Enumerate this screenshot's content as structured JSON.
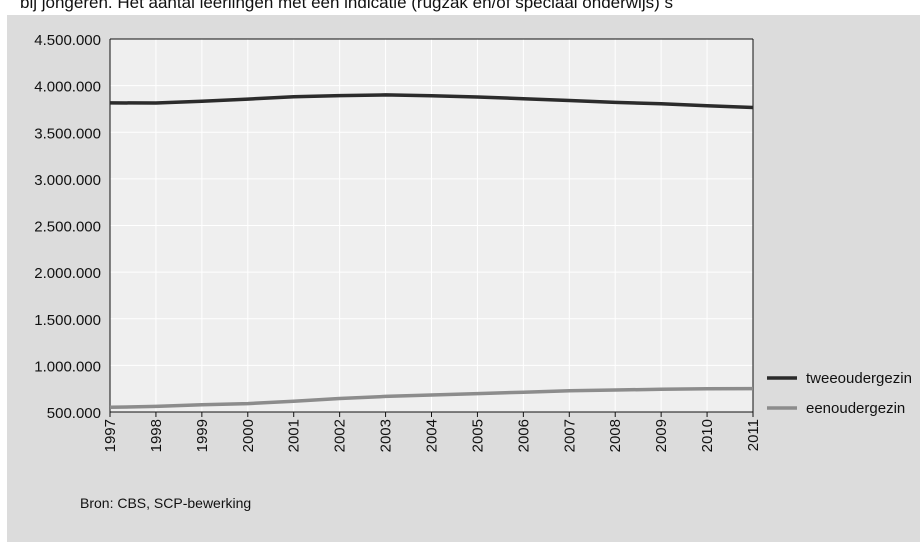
{
  "header_text": "bij jongeren. Het aantal leerlingen met een indicatie (rugzak en/of speciaal onderwijs) s",
  "footer": {
    "source": "Bron: CBS, SCP-bewerking"
  },
  "colors": {
    "panel_bg": "#dcdcdc",
    "plot_bg": "#efefef",
    "grid": "#ffffff",
    "axis": "#111111"
  },
  "chart_data": {
    "type": "line",
    "title": "",
    "xlabel": "",
    "ylabel": "",
    "categories": [
      "1997",
      "1998",
      "1999",
      "2000",
      "2001",
      "2002",
      "2003",
      "2004",
      "2005",
      "2006",
      "2007",
      "2008",
      "2009",
      "2010",
      "2011"
    ],
    "y_ticks": [
      "500.000",
      "1.000.000",
      "1.500.000",
      "2.000.000",
      "2.500.000",
      "3.000.000",
      "3.500.000",
      "4.000.000",
      "4.500.000"
    ],
    "ylim": [
      500000,
      4500000
    ],
    "grid": true,
    "legend_position": "right",
    "series": [
      {
        "name": "tweeoudergezin",
        "color": "#2b2b2b",
        "values": [
          3815000,
          3814000,
          3833000,
          3855000,
          3880000,
          3893000,
          3900000,
          3892000,
          3878000,
          3860000,
          3840000,
          3820000,
          3805000,
          3785000,
          3765000
        ]
      },
      {
        "name": "eenoudergezin",
        "color": "#8c8c8c",
        "values": [
          550000,
          560000,
          577000,
          590000,
          615000,
          645000,
          667000,
          682000,
          697000,
          712000,
          727000,
          736000,
          743000,
          750000,
          751000
        ]
      }
    ]
  }
}
